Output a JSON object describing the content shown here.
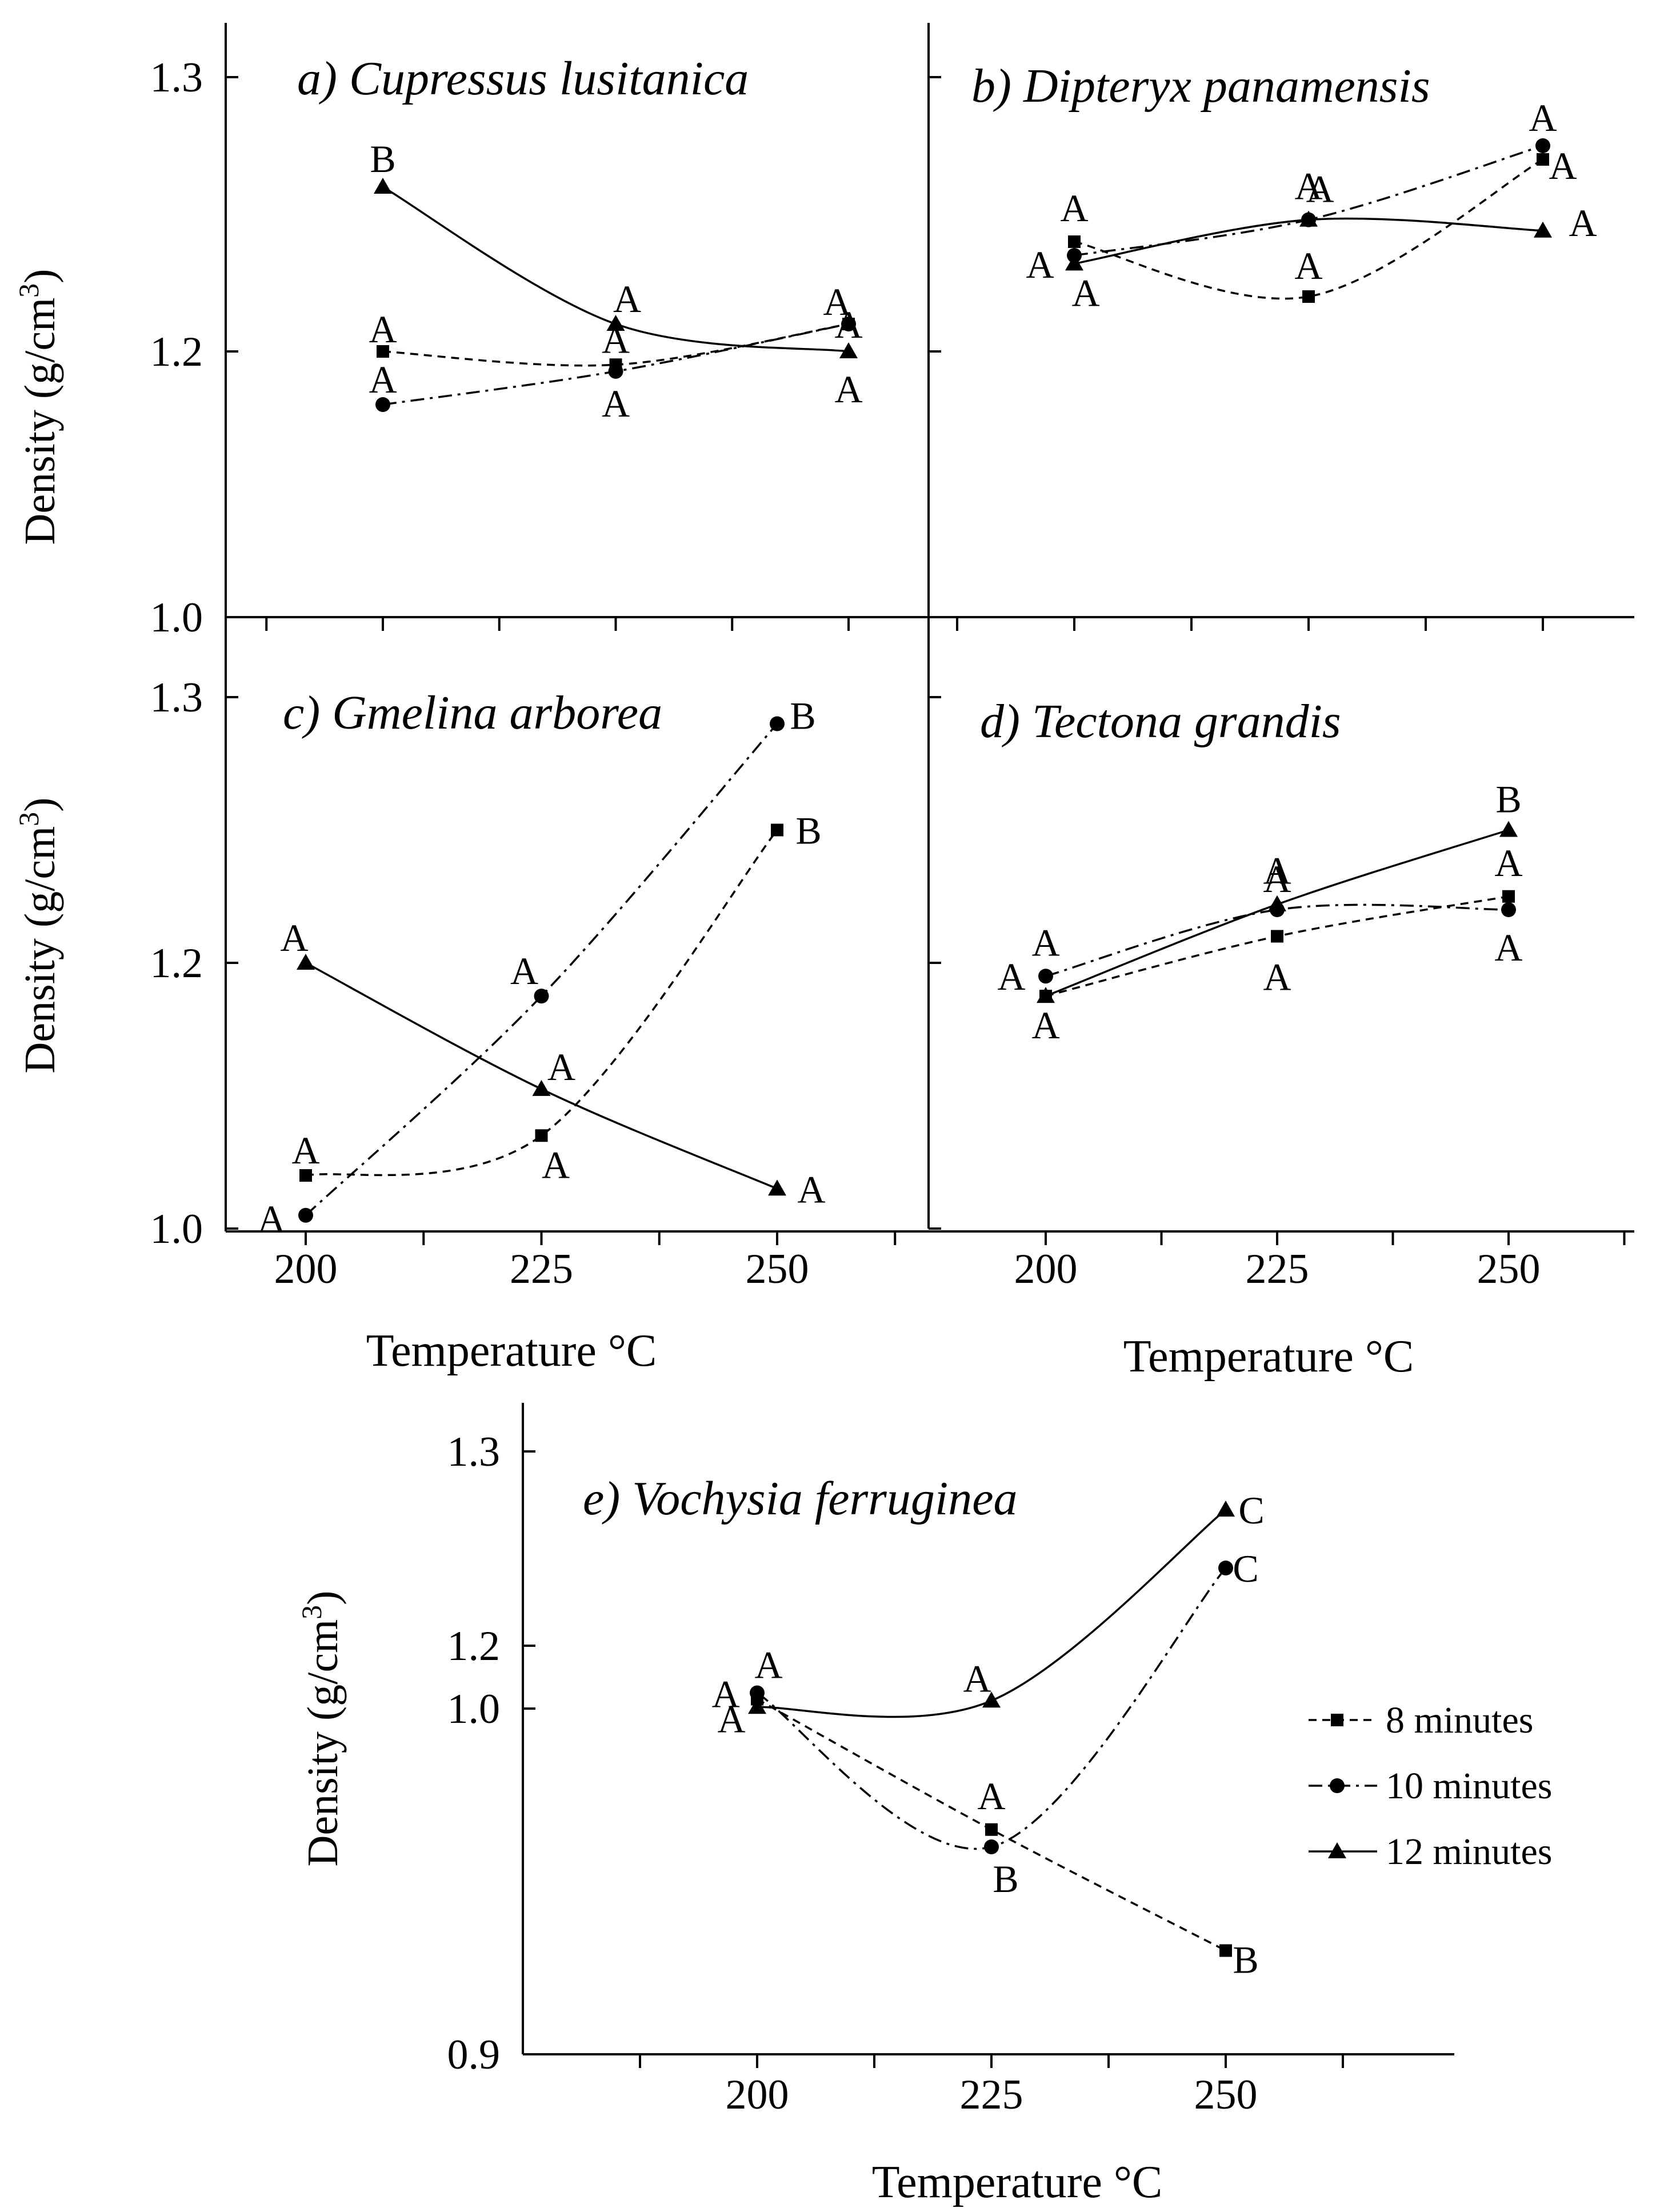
{
  "chart_data": [
    {
      "type": "line",
      "title": "a) Cupressus lusitanica",
      "ylabel": "Density (g/cm³)",
      "xlabel": "",
      "ylim": [
        1.0,
        1.3
      ],
      "yticks": [
        "1.0",
        "1.2",
        "1.3"
      ],
      "xticks": [],
      "series": [
        {
          "name": "8 minutes",
          "marker": "square",
          "dash": "dashed",
          "x": [
            200,
            225,
            250
          ],
          "y": [
            1.2,
            1.19,
            1.21
          ],
          "letters": [
            "A",
            "A",
            "A"
          ]
        },
        {
          "name": "10 minutes",
          "marker": "circle",
          "dash": "dashdot",
          "x": [
            200,
            225,
            250
          ],
          "y": [
            1.16,
            1.185,
            1.21
          ],
          "letters": [
            "A",
            "A",
            "A"
          ]
        },
        {
          "name": "12 minutes",
          "marker": "triangle",
          "dash": "solid",
          "x": [
            200,
            225,
            250
          ],
          "y": [
            1.26,
            1.21,
            1.2
          ],
          "letters": [
            "B",
            "A",
            "A"
          ]
        }
      ]
    },
    {
      "type": "line",
      "title": "b) Dipteryx panamensis",
      "ylabel": "",
      "xlabel": "",
      "ylim": [
        1.0,
        1.3
      ],
      "yticks": [],
      "xticks": [],
      "series": [
        {
          "name": "8 minutes",
          "marker": "square",
          "dash": "dashed",
          "x": [
            200,
            225,
            250
          ],
          "y": [
            1.24,
            1.22,
            1.27
          ],
          "letters": [
            "A",
            "A",
            "A"
          ]
        },
        {
          "name": "10 minutes",
          "marker": "circle",
          "dash": "dashdot",
          "x": [
            200,
            225,
            250
          ],
          "y": [
            1.235,
            1.248,
            1.275
          ],
          "letters": [
            "A",
            "A",
            "A"
          ]
        },
        {
          "name": "12 minutes",
          "marker": "triangle",
          "dash": "solid",
          "x": [
            200,
            225,
            250
          ],
          "y": [
            1.232,
            1.248,
            1.244
          ],
          "letters": [
            "A",
            "A",
            "A"
          ]
        }
      ]
    },
    {
      "type": "line",
      "title": "c) Gmelina arborea",
      "ylabel": "Density (g/cm³)",
      "xlabel": "Temperature °C",
      "ylim": [
        1.0,
        1.3
      ],
      "yticks": [
        "1.0",
        "1.2",
        "1.3"
      ],
      "xticks": [
        "200",
        "225",
        "250"
      ],
      "series": [
        {
          "name": "8 minutes",
          "marker": "square",
          "dash": "dashed",
          "x": [
            200,
            225,
            250
          ],
          "y": [
            1.04,
            1.07,
            1.25
          ],
          "letters": [
            "A",
            "A",
            "B"
          ]
        },
        {
          "name": "10 minutes",
          "marker": "circle",
          "dash": "dashdot",
          "x": [
            200,
            225,
            250
          ],
          "y": [
            1.01,
            1.175,
            1.29
          ],
          "letters": [
            "A",
            "A",
            "B"
          ]
        },
        {
          "name": "12 minutes",
          "marker": "triangle",
          "dash": "solid",
          "x": [
            200,
            225,
            250
          ],
          "y": [
            1.2,
            1.105,
            1.03
          ],
          "letters": [
            "A",
            "A",
            "A"
          ]
        }
      ]
    },
    {
      "type": "line",
      "title": "d) Tectona grandis",
      "ylabel": "",
      "xlabel": "Temperature °C",
      "ylim": [
        1.0,
        1.3
      ],
      "yticks": [],
      "xticks": [
        "200",
        "225",
        "250"
      ],
      "series": [
        {
          "name": "8 minutes",
          "marker": "square",
          "dash": "dashed",
          "x": [
            200,
            225,
            250
          ],
          "y": [
            1.175,
            1.21,
            1.225
          ],
          "letters": [
            "A",
            "A",
            "A"
          ]
        },
        {
          "name": "10 minutes",
          "marker": "circle",
          "dash": "dashdot",
          "x": [
            200,
            225,
            250
          ],
          "y": [
            1.19,
            1.22,
            1.22
          ],
          "letters": [
            "A",
            "A",
            "A"
          ]
        },
        {
          "name": "12 minutes",
          "marker": "triangle",
          "dash": "solid",
          "x": [
            200,
            225,
            250
          ],
          "y": [
            1.175,
            1.222,
            1.25
          ],
          "letters": [
            "A",
            "A",
            "B"
          ]
        }
      ]
    },
    {
      "type": "line",
      "title": "e) Vochysia ferruginea",
      "ylabel": "Density (g/cm³)",
      "xlabel": "Temperature °C",
      "ylim": [
        0.9,
        1.3
      ],
      "yticks": [
        "0.9",
        "1.0",
        "1.2",
        "1.3"
      ],
      "xticks": [
        "200",
        "225",
        "250"
      ],
      "series": [
        {
          "name": "8 minutes",
          "marker": "square",
          "dash": "dashed",
          "x": [
            200,
            225,
            250
          ],
          "y": [
            1.03,
            0.965,
            0.93
          ],
          "letters": [
            "A",
            "A",
            "B"
          ]
        },
        {
          "name": "10 minutes",
          "marker": "circle",
          "dash": "dashdot",
          "x": [
            200,
            225,
            250
          ],
          "y": [
            1.05,
            0.96,
            1.24
          ],
          "letters": [
            "A",
            "B",
            "C"
          ]
        },
        {
          "name": "12 minutes",
          "marker": "triangle",
          "dash": "solid",
          "x": [
            200,
            225,
            250
          ],
          "y": [
            1.005,
            1.025,
            1.27
          ],
          "letters": [
            "A",
            "A",
            "C"
          ]
        }
      ],
      "legend": {
        "position": "right",
        "entries": [
          "8 minutes",
          "10 minutes",
          "12 minutes"
        ]
      }
    }
  ]
}
